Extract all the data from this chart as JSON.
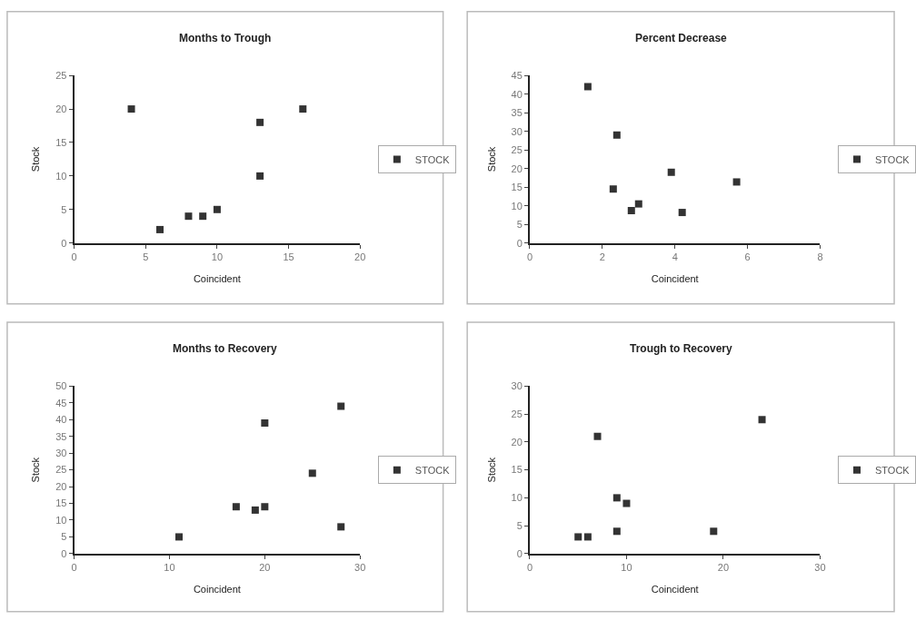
{
  "chart_data": [
    {
      "type": "scatter",
      "title": "Months to Trough",
      "xlabel": "Coincident",
      "ylabel": "Stock",
      "x": [
        4,
        6,
        8,
        9,
        10,
        13,
        13,
        16
      ],
      "series": [
        {
          "name": "STOCK",
          "color": "#333333",
          "values": [
            20,
            2,
            4,
            4,
            5,
            18,
            10,
            20
          ]
        }
      ],
      "xlim": [
        0,
        20
      ],
      "xticks": [
        0,
        5,
        10,
        15,
        20
      ],
      "ylim": [
        0,
        25
      ],
      "yticks": [
        0,
        5,
        10,
        15,
        20,
        25
      ],
      "marker": "square",
      "legend": "right"
    },
    {
      "type": "scatter",
      "title": "Percent Decrease",
      "xlabel": "Coincident",
      "ylabel": "Stock",
      "x": [
        1.6,
        2.4,
        2.3,
        2.8,
        3.0,
        3.9,
        4.2,
        5.7
      ],
      "series": [
        {
          "name": "STOCK",
          "color": "#333333",
          "values": [
            42,
            29,
            14.5,
            8.7,
            10.5,
            19,
            8.2,
            16.4
          ]
        }
      ],
      "xlim": [
        0,
        8
      ],
      "xticks": [
        0,
        2,
        4,
        6,
        8
      ],
      "ylim": [
        0,
        45
      ],
      "yticks": [
        0,
        5,
        10,
        15,
        20,
        25,
        30,
        35,
        40,
        45
      ],
      "marker": "square",
      "legend": "right"
    },
    {
      "type": "scatter",
      "title": "Months to Recovery",
      "xlabel": "Coincident",
      "ylabel": "Stock",
      "x": [
        11,
        17,
        19,
        20,
        20,
        25,
        28,
        28
      ],
      "series": [
        {
          "name": "STOCK",
          "color": "#333333",
          "values": [
            5,
            14,
            13,
            14,
            39,
            24,
            44,
            8
          ]
        }
      ],
      "xlim": [
        0,
        30
      ],
      "xticks": [
        0,
        10,
        20,
        30
      ],
      "ylim": [
        0,
        50
      ],
      "yticks": [
        0,
        5,
        10,
        15,
        20,
        25,
        30,
        35,
        40,
        45,
        50
      ],
      "marker": "square",
      "legend": "right"
    },
    {
      "type": "scatter",
      "title": "Trough to Recovery",
      "xlabel": "Coincident",
      "ylabel": "Stock",
      "x": [
        5,
        6,
        7,
        9,
        10,
        9,
        19,
        24
      ],
      "series": [
        {
          "name": "STOCK",
          "color": "#333333",
          "values": [
            3,
            3,
            21,
            10,
            9,
            4,
            4,
            24
          ]
        }
      ],
      "xlim": [
        0,
        30
      ],
      "xticks": [
        0,
        10,
        20,
        30
      ],
      "ylim": [
        0,
        30
      ],
      "yticks": [
        0,
        5,
        10,
        15,
        20,
        25,
        30
      ],
      "marker": "square",
      "legend": "right"
    }
  ]
}
